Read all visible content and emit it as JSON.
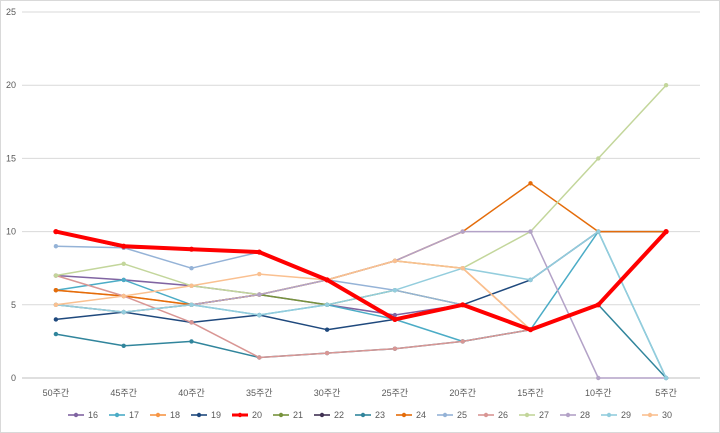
{
  "chart_data": {
    "type": "line",
    "categories": [
      "50주간",
      "45주간",
      "40주간",
      "35주간",
      "30주간",
      "25주간",
      "20주간",
      "15주간",
      "10주간",
      "5주간"
    ],
    "ylim": [
      0,
      25
    ],
    "yticks": [
      0,
      5,
      10,
      15,
      20,
      25
    ],
    "grid": "horizontal",
    "legend_position": "bottom",
    "series": [
      {
        "name": "16",
        "color": "#8064a2",
        "width": 1.5,
        "values": [
          7,
          6.7,
          6.3,
          5.7,
          5,
          4.3,
          5,
          3.3,
          5,
          10
        ]
      },
      {
        "name": "17",
        "color": "#4bacc6",
        "width": 1.5,
        "values": [
          6,
          6.7,
          5,
          4.3,
          5,
          4,
          2.5,
          3.3,
          10,
          0
        ]
      },
      {
        "name": "18",
        "color": "#f79646",
        "width": 1.5,
        "values": [
          6,
          5.6,
          5,
          5.7,
          6.7,
          8,
          7.5,
          3.3,
          5,
          10
        ]
      },
      {
        "name": "19",
        "color": "#1f497d",
        "width": 1.5,
        "values": [
          4,
          4.5,
          3.8,
          4.3,
          3.3,
          4,
          5,
          6.7,
          10,
          10
        ]
      },
      {
        "name": "20",
        "color": "#ff0000",
        "width": 4,
        "values": [
          10,
          9,
          8.8,
          8.6,
          6.7,
          4,
          5,
          3.3,
          5,
          10
        ]
      },
      {
        "name": "21",
        "color": "#77933c",
        "width": 1.5,
        "values": [
          5,
          4.5,
          5,
          5.7,
          5,
          6,
          5,
          3.3,
          5,
          10
        ]
      },
      {
        "name": "22",
        "color": "#403152",
        "width": 1.5,
        "values": [
          10,
          8.9,
          8.8,
          8.6,
          6.7,
          4,
          5,
          3.3,
          5,
          10
        ]
      },
      {
        "name": "23",
        "color": "#31859c",
        "width": 1.5,
        "values": [
          3,
          2.2,
          2.5,
          1.4,
          1.7,
          2,
          2.5,
          3.3,
          5,
          0
        ]
      },
      {
        "name": "24",
        "color": "#e46c0a",
        "width": 1.5,
        "values": [
          6,
          5.6,
          5,
          5.7,
          6.7,
          8,
          10,
          13.3,
          10,
          10
        ]
      },
      {
        "name": "25",
        "color": "#95b3d7",
        "width": 1.5,
        "values": [
          9,
          8.9,
          7.5,
          8.6,
          6.7,
          6,
          5,
          3.3,
          5,
          10
        ]
      },
      {
        "name": "26",
        "color": "#d99694",
        "width": 1.5,
        "values": [
          7,
          5.6,
          3.8,
          1.4,
          1.7,
          2,
          2.5,
          3.3,
          5,
          10
        ]
      },
      {
        "name": "27",
        "color": "#c3d69b",
        "width": 1.5,
        "values": [
          7,
          7.8,
          6.3,
          5.7,
          6.7,
          8,
          7.5,
          10,
          15,
          20
        ]
      },
      {
        "name": "28",
        "color": "#b3a2c7",
        "width": 1.5,
        "values": [
          5,
          4.5,
          5,
          5.7,
          6.7,
          8,
          10,
          10,
          0,
          0
        ]
      },
      {
        "name": "29",
        "color": "#93cddd",
        "width": 1.5,
        "values": [
          5,
          4.5,
          5,
          4.3,
          5,
          6,
          7.5,
          6.7,
          10,
          0
        ]
      },
      {
        "name": "30",
        "color": "#fac090",
        "width": 1.5,
        "values": [
          5,
          5.6,
          6.3,
          7.1,
          6.7,
          8,
          7.5,
          3.3,
          5,
          10
        ]
      }
    ]
  }
}
